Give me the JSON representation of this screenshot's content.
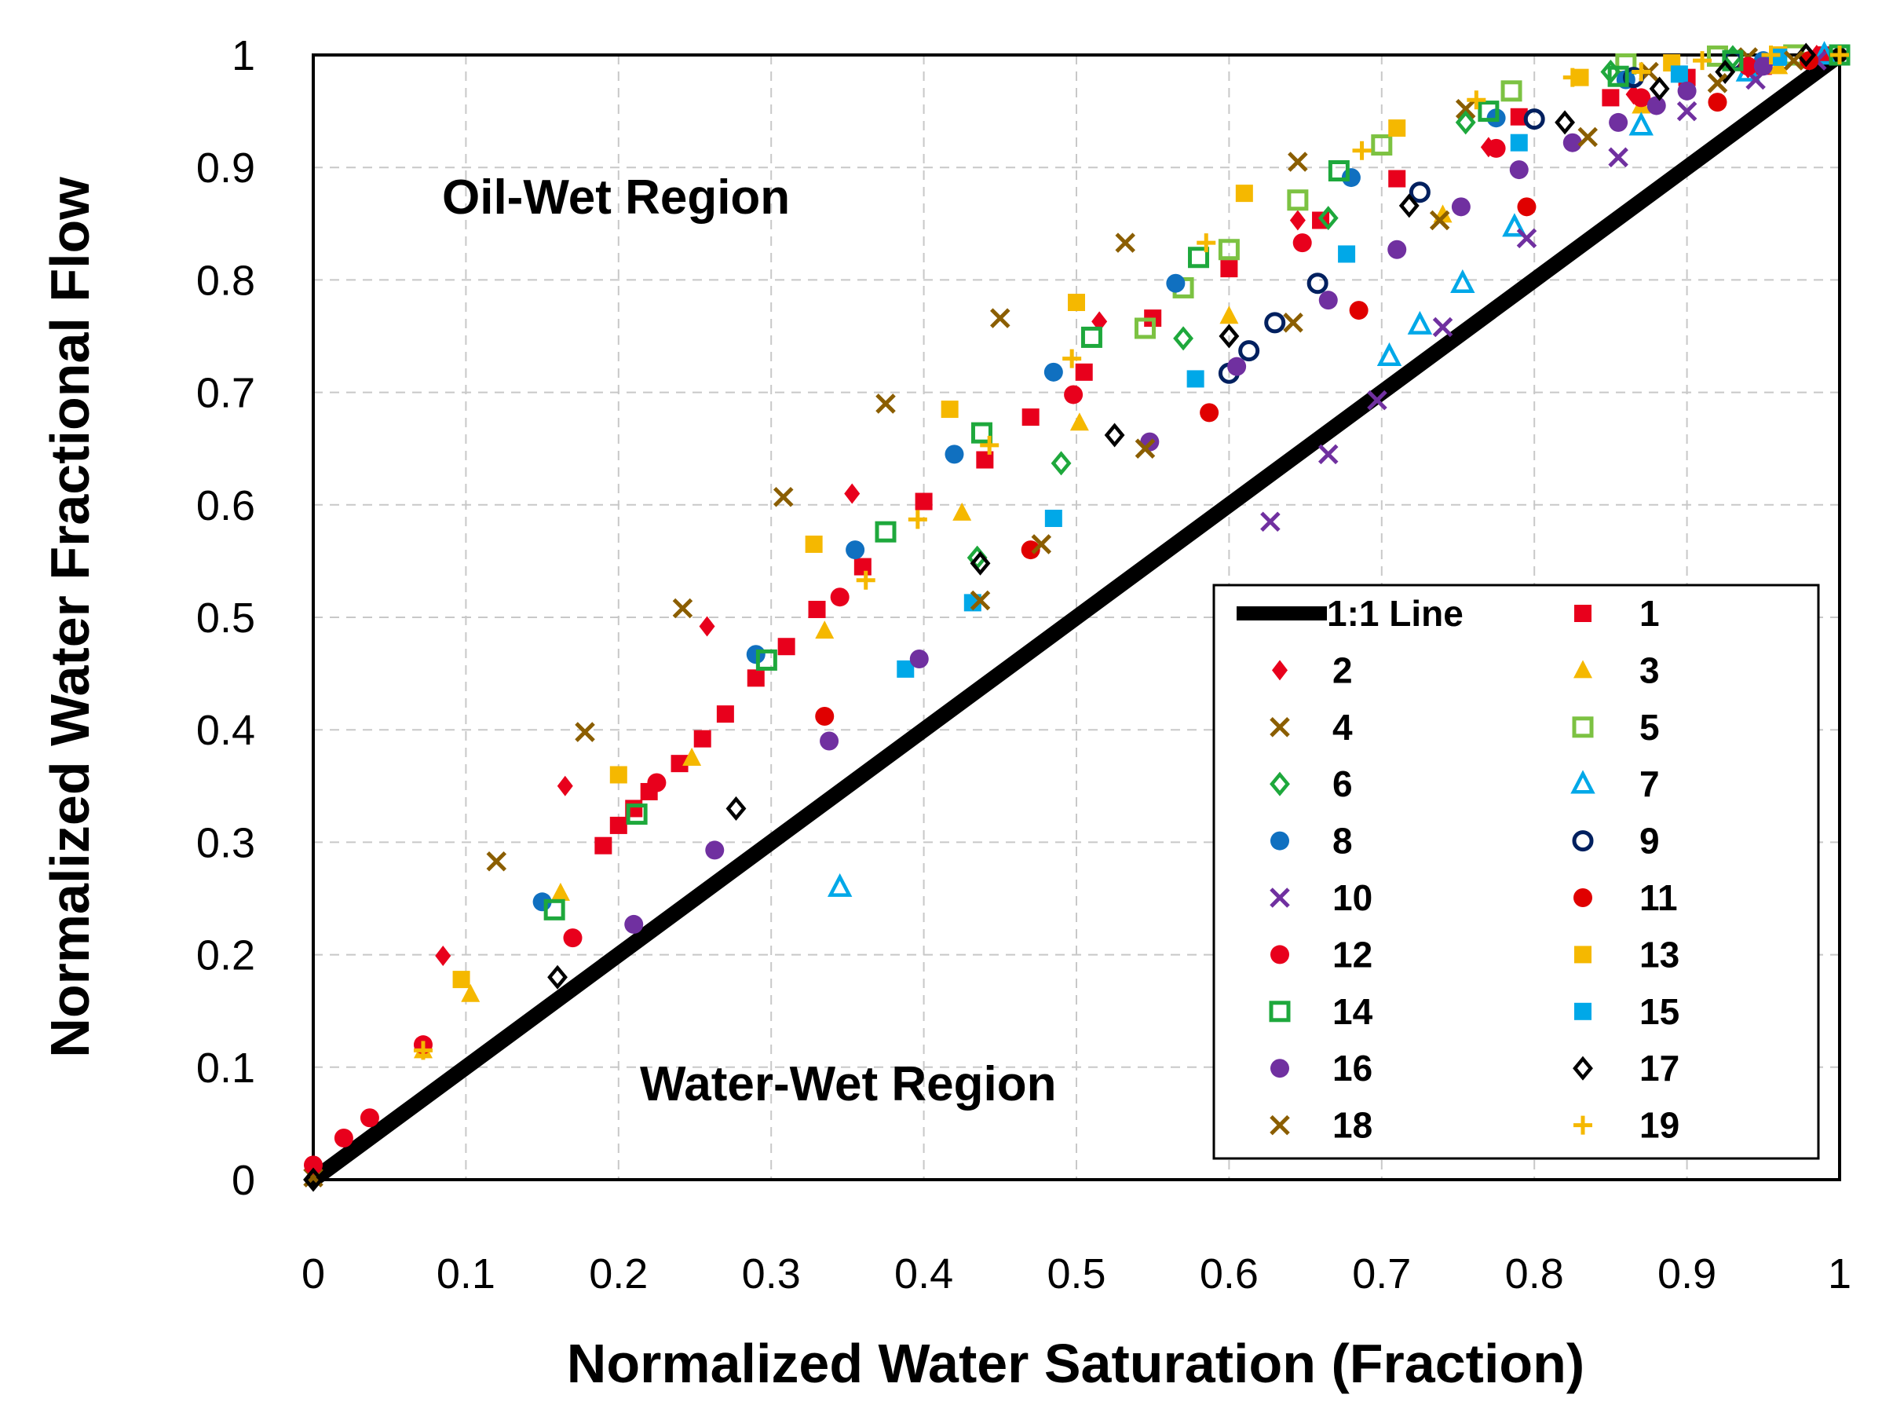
{
  "chart_data": {
    "type": "scatter",
    "xlabel": "Normalized Water Saturation (Fraction)",
    "ylabel": "Normalized Water Fractional Flow",
    "xlim": [
      0,
      1
    ],
    "ylim": [
      0,
      1
    ],
    "x_ticks": [
      "0",
      "0.1",
      "0.2",
      "0.3",
      "0.4",
      "0.5",
      "0.6",
      "0.7",
      "0.8",
      "0.9",
      "1"
    ],
    "y_ticks": [
      "0",
      "0.1",
      "0.2",
      "0.3",
      "0.4",
      "0.5",
      "0.6",
      "0.7",
      "0.8",
      "0.9",
      "1"
    ],
    "grid": true,
    "legend_position": "bottom-right",
    "annotations": [
      {
        "text": "Oil-Wet Region",
        "x": 0.22,
        "y": 0.87
      },
      {
        "text": "Water-Wet Region",
        "x": 0.54,
        "y": 0.085
      }
    ],
    "reference_line": {
      "name": "1:1 Line",
      "x": [
        0,
        1
      ],
      "y": [
        0,
        1
      ],
      "color": "#000000"
    },
    "series": [
      {
        "name": "1",
        "marker": "square-filled",
        "color": "#E8001C",
        "points": [
          [
            0.19,
            0.297
          ],
          [
            0.2,
            0.315
          ],
          [
            0.21,
            0.33
          ],
          [
            0.22,
            0.345
          ],
          [
            0.24,
            0.37
          ],
          [
            0.255,
            0.392
          ],
          [
            0.27,
            0.414
          ],
          [
            0.29,
            0.446
          ],
          [
            0.31,
            0.474
          ],
          [
            0.33,
            0.507
          ],
          [
            0.36,
            0.545
          ],
          [
            0.4,
            0.603
          ],
          [
            0.44,
            0.64
          ],
          [
            0.47,
            0.678
          ],
          [
            0.505,
            0.718
          ],
          [
            0.55,
            0.766
          ],
          [
            0.6,
            0.81
          ],
          [
            0.66,
            0.853
          ],
          [
            0.71,
            0.89
          ],
          [
            0.79,
            0.945
          ],
          [
            0.85,
            0.962
          ],
          [
            0.9,
            0.98
          ],
          [
            0.95,
            0.99
          ],
          [
            0.99,
            1.0
          ]
        ]
      },
      {
        "name": "2",
        "marker": "diamond-filled",
        "color": "#E8001C",
        "points": [
          [
            0.085,
            0.199
          ],
          [
            0.165,
            0.35
          ],
          [
            0.258,
            0.492
          ],
          [
            0.353,
            0.61
          ],
          [
            0.515,
            0.763
          ],
          [
            0.645,
            0.853
          ],
          [
            0.77,
            0.918
          ],
          [
            0.865,
            0.965
          ],
          [
            0.94,
            0.988
          ],
          [
            0.985,
            1.0
          ]
        ]
      },
      {
        "name": "3",
        "marker": "triangle-filled",
        "color": "#F5B800",
        "points": [
          [
            0.072,
            0.115
          ],
          [
            0.103,
            0.165
          ],
          [
            0.162,
            0.255
          ],
          [
            0.248,
            0.375
          ],
          [
            0.335,
            0.488
          ],
          [
            0.425,
            0.593
          ],
          [
            0.502,
            0.673
          ],
          [
            0.6,
            0.768
          ],
          [
            0.74,
            0.858
          ],
          [
            0.87,
            0.955
          ],
          [
            0.96,
            0.99
          ]
        ]
      },
      {
        "name": "4",
        "marker": "x",
        "color": "#8B5E00",
        "points": [
          [
            0.0,
            0.002
          ],
          [
            0.12,
            0.283
          ],
          [
            0.178,
            0.398
          ],
          [
            0.242,
            0.508
          ],
          [
            0.308,
            0.607
          ],
          [
            0.375,
            0.69
          ],
          [
            0.45,
            0.766
          ],
          [
            0.532,
            0.833
          ],
          [
            0.645,
            0.905
          ],
          [
            0.755,
            0.952
          ],
          [
            0.875,
            0.985
          ],
          [
            0.94,
            0.998
          ]
        ]
      },
      {
        "name": "5",
        "marker": "square-open",
        "color": "#7CC242",
        "points": [
          [
            0.545,
            0.757
          ],
          [
            0.57,
            0.793
          ],
          [
            0.6,
            0.827
          ],
          [
            0.645,
            0.871
          ],
          [
            0.7,
            0.92
          ],
          [
            0.785,
            0.968
          ],
          [
            0.86,
            0.992
          ],
          [
            0.92,
            0.999
          ],
          [
            0.97,
            1.0
          ]
        ]
      },
      {
        "name": "6",
        "marker": "diamond-open",
        "color": "#1EA83C",
        "points": [
          [
            0.435,
            0.553
          ],
          [
            0.49,
            0.637
          ],
          [
            0.57,
            0.748
          ],
          [
            0.665,
            0.855
          ],
          [
            0.755,
            0.94
          ],
          [
            0.85,
            0.985
          ],
          [
            0.93,
            0.998
          ]
        ]
      },
      {
        "name": "7",
        "marker": "triangle-open",
        "color": "#00A8E8",
        "points": [
          [
            0.345,
            0.26
          ],
          [
            0.705,
            0.732
          ],
          [
            0.725,
            0.76
          ],
          [
            0.753,
            0.797
          ],
          [
            0.787,
            0.847
          ],
          [
            0.87,
            0.937
          ],
          [
            0.94,
            0.985
          ],
          [
            0.99,
            1.0
          ]
        ]
      },
      {
        "name": "8",
        "marker": "circle-filled",
        "color": "#1070C0",
        "points": [
          [
            0.15,
            0.247
          ],
          [
            0.29,
            0.467
          ],
          [
            0.355,
            0.56
          ],
          [
            0.42,
            0.645
          ],
          [
            0.485,
            0.718
          ],
          [
            0.565,
            0.797
          ],
          [
            0.68,
            0.891
          ],
          [
            0.775,
            0.944
          ],
          [
            0.86,
            0.978
          ],
          [
            0.95,
            0.995
          ]
        ]
      },
      {
        "name": "9",
        "marker": "circle-open",
        "color": "#00205F",
        "points": [
          [
            0.6,
            0.717
          ],
          [
            0.613,
            0.737
          ],
          [
            0.63,
            0.762
          ],
          [
            0.658,
            0.797
          ],
          [
            0.725,
            0.878
          ],
          [
            0.8,
            0.943
          ],
          [
            0.865,
            0.98
          ],
          [
            0.93,
            0.995
          ]
        ]
      },
      {
        "name": "10",
        "marker": "x",
        "color": "#7030A0",
        "points": [
          [
            0.627,
            0.585
          ],
          [
            0.665,
            0.645
          ],
          [
            0.697,
            0.693
          ],
          [
            0.74,
            0.758
          ],
          [
            0.795,
            0.837
          ],
          [
            0.855,
            0.909
          ],
          [
            0.9,
            0.95
          ],
          [
            0.945,
            0.978
          ],
          [
            0.985,
            0.995
          ]
        ]
      },
      {
        "name": "11",
        "marker": "circle-filled",
        "color": "#E00000",
        "points": [
          [
            0.335,
            0.412
          ],
          [
            0.47,
            0.56
          ],
          [
            0.587,
            0.682
          ],
          [
            0.685,
            0.773
          ],
          [
            0.795,
            0.865
          ],
          [
            0.92,
            0.958
          ],
          [
            0.98,
            0.995
          ]
        ]
      },
      {
        "name": "12",
        "marker": "circle-filled",
        "color": "#E8001C",
        "points": [
          [
            0.0,
            0.013
          ],
          [
            0.02,
            0.037
          ],
          [
            0.037,
            0.055
          ],
          [
            0.072,
            0.12
          ],
          [
            0.17,
            0.215
          ],
          [
            0.225,
            0.353
          ],
          [
            0.345,
            0.518
          ],
          [
            0.498,
            0.698
          ],
          [
            0.648,
            0.833
          ],
          [
            0.775,
            0.917
          ],
          [
            0.87,
            0.962
          ],
          [
            0.94,
            0.99
          ]
        ]
      },
      {
        "name": "13",
        "marker": "square-filled",
        "color": "#F5B800",
        "points": [
          [
            0.097,
            0.178
          ],
          [
            0.2,
            0.36
          ],
          [
            0.328,
            0.565
          ],
          [
            0.417,
            0.685
          ],
          [
            0.5,
            0.78
          ],
          [
            0.61,
            0.877
          ],
          [
            0.71,
            0.935
          ],
          [
            0.83,
            0.98
          ],
          [
            0.89,
            0.993
          ],
          [
            0.96,
            1.0
          ]
        ]
      },
      {
        "name": "14",
        "marker": "square-open",
        "color": "#1EA83C",
        "points": [
          [
            0.158,
            0.24
          ],
          [
            0.212,
            0.325
          ],
          [
            0.297,
            0.462
          ],
          [
            0.375,
            0.576
          ],
          [
            0.438,
            0.664
          ],
          [
            0.51,
            0.749
          ],
          [
            0.58,
            0.82
          ],
          [
            0.672,
            0.897
          ],
          [
            0.77,
            0.95
          ],
          [
            0.855,
            0.981
          ],
          [
            0.93,
            0.995
          ],
          [
            1.0,
            1.0
          ]
        ]
      },
      {
        "name": "15",
        "marker": "square-filled",
        "color": "#00A8E8",
        "points": [
          [
            0.388,
            0.454
          ],
          [
            0.432,
            0.513
          ],
          [
            0.485,
            0.588
          ],
          [
            0.578,
            0.712
          ],
          [
            0.677,
            0.823
          ],
          [
            0.79,
            0.922
          ],
          [
            0.895,
            0.983
          ],
          [
            0.96,
            0.998
          ]
        ]
      },
      {
        "name": "16",
        "marker": "circle-filled",
        "color": "#7030A0",
        "points": [
          [
            0.21,
            0.227
          ],
          [
            0.263,
            0.293
          ],
          [
            0.338,
            0.39
          ],
          [
            0.397,
            0.463
          ],
          [
            0.548,
            0.656
          ],
          [
            0.605,
            0.723
          ],
          [
            0.665,
            0.782
          ],
          [
            0.71,
            0.827
          ],
          [
            0.752,
            0.865
          ],
          [
            0.79,
            0.898
          ],
          [
            0.825,
            0.922
          ],
          [
            0.855,
            0.94
          ],
          [
            0.88,
            0.955
          ],
          [
            0.9,
            0.968
          ],
          [
            0.95,
            0.99
          ]
        ]
      },
      {
        "name": "17",
        "marker": "diamond-open",
        "color": "#000000",
        "points": [
          [
            0.0,
            0.0
          ],
          [
            0.16,
            0.18
          ],
          [
            0.277,
            0.33
          ],
          [
            0.437,
            0.548
          ],
          [
            0.525,
            0.662
          ],
          [
            0.6,
            0.75
          ],
          [
            0.718,
            0.866
          ],
          [
            0.82,
            0.94
          ],
          [
            0.882,
            0.97
          ],
          [
            0.925,
            0.985
          ],
          [
            0.978,
            1.0
          ]
        ]
      },
      {
        "name": "18",
        "marker": "x",
        "color": "#8B5E00",
        "points": [
          [
            0.437,
            0.515
          ],
          [
            0.477,
            0.565
          ],
          [
            0.545,
            0.65
          ],
          [
            0.642,
            0.762
          ],
          [
            0.738,
            0.853
          ],
          [
            0.835,
            0.927
          ],
          [
            0.92,
            0.975
          ],
          [
            0.97,
            0.995
          ]
        ]
      },
      {
        "name": "19",
        "marker": "plus",
        "color": "#F5B800",
        "points": [
          [
            0.072,
            0.115
          ],
          [
            0.362,
            0.533
          ],
          [
            0.396,
            0.587
          ],
          [
            0.443,
            0.653
          ],
          [
            0.497,
            0.73
          ],
          [
            0.585,
            0.833
          ],
          [
            0.687,
            0.915
          ],
          [
            0.762,
            0.96
          ],
          [
            0.825,
            0.98
          ],
          [
            0.87,
            0.985
          ],
          [
            0.91,
            0.995
          ],
          [
            0.955,
            1.0
          ],
          [
            1.0,
            1.0
          ]
        ]
      }
    ]
  }
}
